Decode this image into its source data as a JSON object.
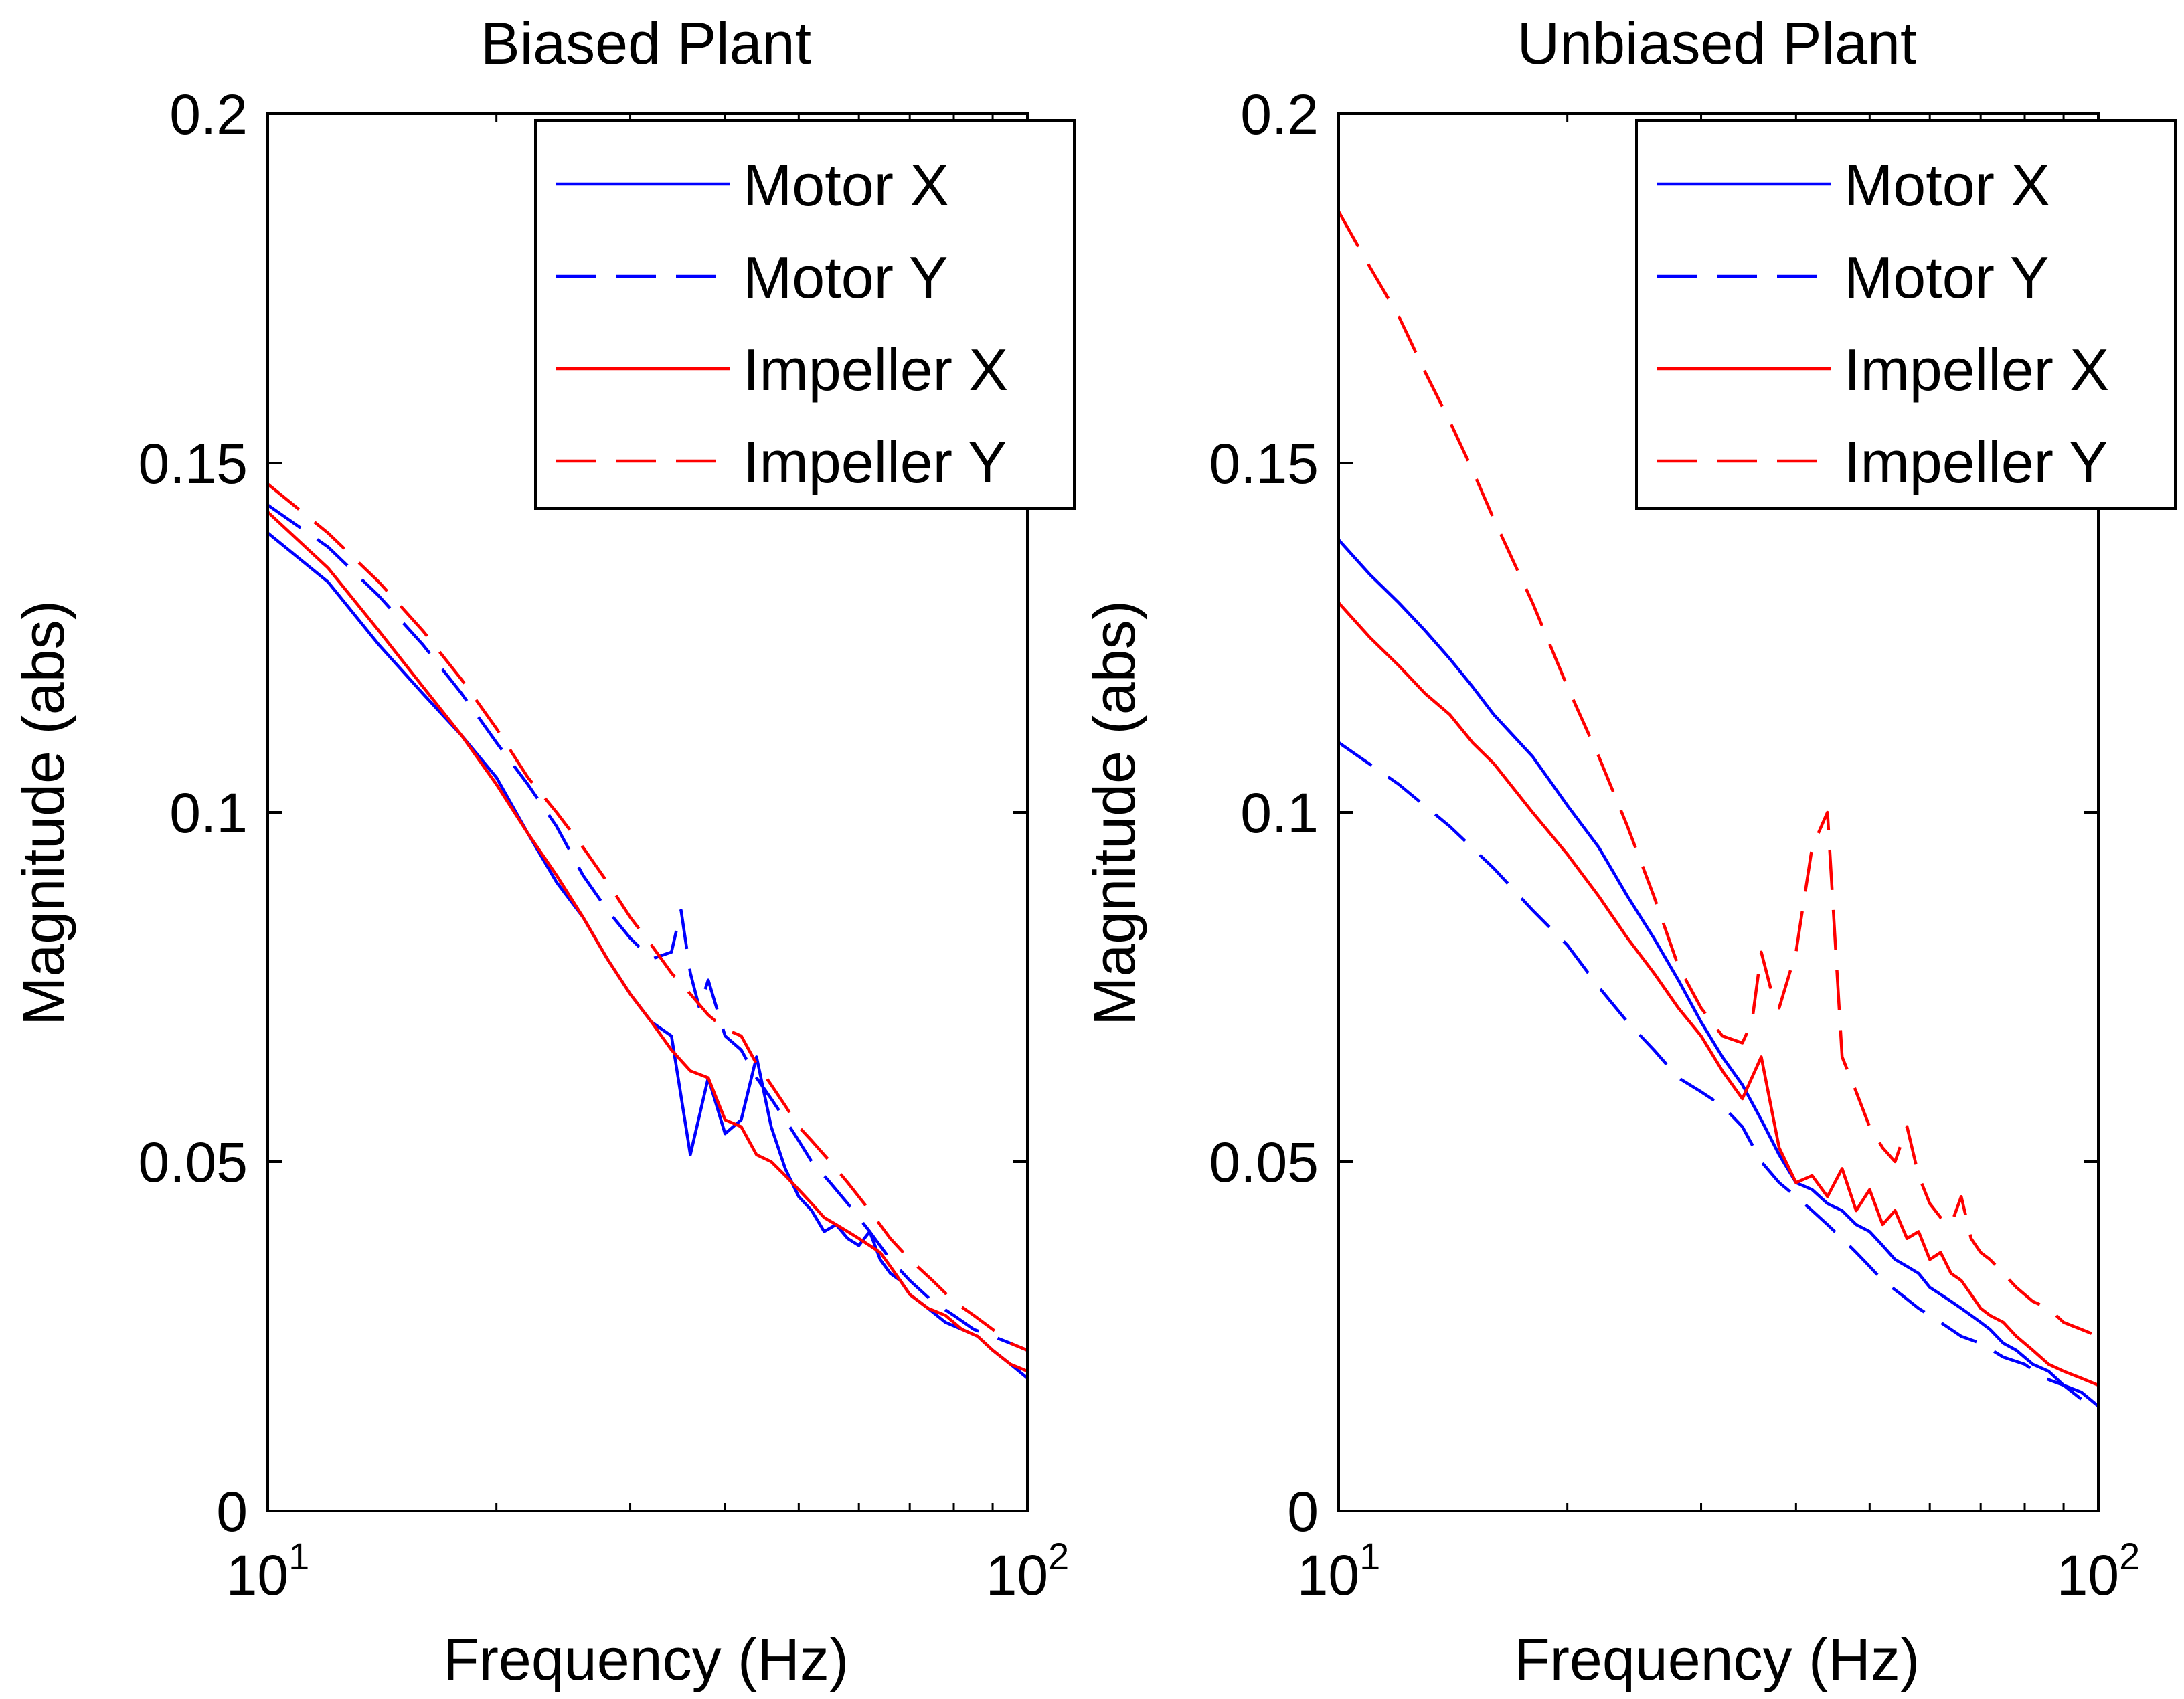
{
  "chart_data": [
    {
      "type": "line",
      "title": "Biased Plant",
      "xlabel": "Frequency  (Hz)",
      "ylabel": "Magnitude (abs)",
      "xscale": "log",
      "xlim": [
        10,
        100
      ],
      "ylim": [
        0,
        0.2
      ],
      "xticks": [
        {
          "base": "10",
          "exp": "1"
        },
        {
          "base": "10",
          "exp": "2"
        }
      ],
      "yticks": [
        "0",
        "0.05",
        "0.1",
        "0.15",
        "0.2"
      ],
      "grid": false,
      "legend_position": "top-right",
      "series": [
        {
          "name": "Motor X",
          "color": "#0000ff",
          "dash": "solid",
          "x": [
            10,
            12,
            14,
            16,
            18,
            20,
            22,
            24,
            26,
            28,
            30,
            32,
            34,
            36,
            38,
            40,
            42,
            44,
            46,
            48,
            50,
            52,
            54,
            56,
            58,
            60,
            62,
            64,
            66,
            68,
            70,
            74,
            78,
            82,
            86,
            90,
            95,
            100
          ],
          "y": [
            0.14,
            0.133,
            0.124,
            0.117,
            0.111,
            0.105,
            0.097,
            0.09,
            0.085,
            0.079,
            0.074,
            0.07,
            0.068,
            0.051,
            0.062,
            0.054,
            0.056,
            0.065,
            0.055,
            0.049,
            0.045,
            0.043,
            0.04,
            0.041,
            0.039,
            0.038,
            0.04,
            0.036,
            0.034,
            0.033,
            0.031,
            0.029,
            0.027,
            0.026,
            0.025,
            0.023,
            0.021,
            0.019
          ]
        },
        {
          "name": "Motor Y",
          "color": "#0000ff",
          "dash": "dashed",
          "x": [
            10,
            12,
            14,
            16,
            18,
            20,
            22,
            24,
            26,
            28,
            30,
            32,
            34,
            35,
            36,
            37,
            38,
            40,
            42,
            44,
            46,
            48,
            50,
            52,
            55,
            58,
            62,
            66,
            70,
            75,
            80,
            85,
            90,
            95,
            100
          ],
          "y": [
            0.144,
            0.138,
            0.131,
            0.124,
            0.117,
            0.11,
            0.104,
            0.098,
            0.091,
            0.086,
            0.082,
            0.079,
            0.08,
            0.086,
            0.077,
            0.072,
            0.076,
            0.068,
            0.066,
            0.062,
            0.059,
            0.056,
            0.053,
            0.05,
            0.047,
            0.044,
            0.04,
            0.036,
            0.033,
            0.03,
            0.028,
            0.026,
            0.025,
            0.024,
            0.023
          ]
        },
        {
          "name": "Impeller X",
          "color": "#ff0000",
          "dash": "solid",
          "x": [
            10,
            12,
            14,
            16,
            18,
            20,
            22,
            24,
            26,
            28,
            30,
            32,
            34,
            36,
            38,
            40,
            42,
            44,
            46,
            48,
            50,
            52,
            54,
            56,
            58,
            60,
            62,
            64,
            66,
            68,
            70,
            74,
            78,
            82,
            86,
            90,
            95,
            100
          ],
          "y": [
            0.143,
            0.135,
            0.126,
            0.118,
            0.111,
            0.104,
            0.097,
            0.091,
            0.085,
            0.079,
            0.074,
            0.07,
            0.066,
            0.063,
            0.062,
            0.056,
            0.055,
            0.051,
            0.05,
            0.048,
            0.046,
            0.044,
            0.042,
            0.041,
            0.04,
            0.039,
            0.038,
            0.037,
            0.035,
            0.033,
            0.031,
            0.029,
            0.028,
            0.026,
            0.025,
            0.023,
            0.021,
            0.02
          ]
        },
        {
          "name": "Impeller Y",
          "color": "#ff0000",
          "dash": "dashed",
          "x": [
            10,
            12,
            14,
            16,
            18,
            20,
            22,
            24,
            26,
            28,
            30,
            32,
            34,
            36,
            38,
            40,
            42,
            44,
            46,
            48,
            50,
            52,
            55,
            58,
            62,
            66,
            70,
            75,
            80,
            85,
            90,
            95,
            100
          ],
          "y": [
            0.147,
            0.14,
            0.133,
            0.126,
            0.119,
            0.112,
            0.105,
            0.1,
            0.095,
            0.09,
            0.085,
            0.081,
            0.077,
            0.074,
            0.071,
            0.069,
            0.068,
            0.064,
            0.061,
            0.058,
            0.055,
            0.053,
            0.05,
            0.047,
            0.043,
            0.039,
            0.036,
            0.033,
            0.03,
            0.028,
            0.026,
            0.024,
            0.023
          ]
        }
      ],
      "legend": [
        "Motor X",
        "Motor Y",
        "Impeller X",
        "Impeller Y"
      ]
    },
    {
      "type": "line",
      "title": "Unbiased Plant",
      "xlabel": "Frequency  (Hz)",
      "ylabel": "Magnitude (abs)",
      "xscale": "log",
      "xlim": [
        10,
        100
      ],
      "ylim": [
        0,
        0.2
      ],
      "xticks": [
        {
          "base": "10",
          "exp": "1"
        },
        {
          "base": "10",
          "exp": "2"
        }
      ],
      "yticks": [
        "0",
        "0.05",
        "0.1",
        "0.15",
        "0.2"
      ],
      "grid": false,
      "legend_position": "top-right",
      "series": [
        {
          "name": "Motor X",
          "color": "#0000ff",
          "dash": "solid",
          "x": [
            10,
            11,
            12,
            13,
            14,
            15,
            16,
            18,
            20,
            22,
            24,
            26,
            28,
            30,
            32,
            34,
            36,
            38,
            40,
            42,
            44,
            46,
            48,
            50,
            52,
            54,
            56,
            58,
            60,
            62,
            64,
            66,
            68,
            70,
            72,
            75,
            78,
            82,
            86,
            90,
            95,
            100
          ],
          "y": [
            0.139,
            0.134,
            0.13,
            0.126,
            0.122,
            0.118,
            0.114,
            0.108,
            0.101,
            0.095,
            0.088,
            0.082,
            0.076,
            0.07,
            0.065,
            0.061,
            0.056,
            0.051,
            0.047,
            0.046,
            0.044,
            0.043,
            0.041,
            0.04,
            0.038,
            0.036,
            0.035,
            0.034,
            0.032,
            0.031,
            0.03,
            0.029,
            0.028,
            0.027,
            0.026,
            0.024,
            0.023,
            0.021,
            0.02,
            0.018,
            0.017,
            0.015
          ]
        },
        {
          "name": "Motor Y",
          "color": "#0000ff",
          "dash": "dashed",
          "x": [
            10,
            12,
            14,
            16,
            18,
            20,
            22,
            24,
            26,
            28,
            30,
            32,
            34,
            36,
            38,
            40,
            42,
            44,
            46,
            48,
            50,
            52,
            55,
            58,
            62,
            66,
            70,
            75,
            80,
            85,
            90,
            95,
            100
          ],
          "y": [
            0.11,
            0.104,
            0.098,
            0.092,
            0.086,
            0.081,
            0.075,
            0.07,
            0.066,
            0.062,
            0.06,
            0.058,
            0.055,
            0.05,
            0.047,
            0.045,
            0.043,
            0.041,
            0.039,
            0.037,
            0.035,
            0.033,
            0.031,
            0.029,
            0.027,
            0.025,
            0.024,
            0.022,
            0.021,
            0.019,
            0.018,
            0.016,
            0.015
          ]
        },
        {
          "name": "Impeller X",
          "color": "#ff0000",
          "dash": "solid",
          "x": [
            10,
            11,
            12,
            13,
            14,
            15,
            16,
            18,
            20,
            22,
            24,
            26,
            28,
            30,
            32,
            34,
            36,
            38,
            40,
            42,
            44,
            46,
            48,
            50,
            52,
            54,
            56,
            58,
            60,
            62,
            64,
            66,
            68,
            70,
            72,
            75,
            78,
            82,
            86,
            90,
            95,
            100
          ],
          "y": [
            0.13,
            0.125,
            0.121,
            0.117,
            0.114,
            0.11,
            0.107,
            0.1,
            0.094,
            0.088,
            0.082,
            0.077,
            0.072,
            0.068,
            0.063,
            0.059,
            0.065,
            0.052,
            0.047,
            0.048,
            0.045,
            0.049,
            0.043,
            0.046,
            0.041,
            0.043,
            0.039,
            0.04,
            0.036,
            0.037,
            0.034,
            0.033,
            0.031,
            0.029,
            0.028,
            0.027,
            0.025,
            0.023,
            0.021,
            0.02,
            0.019,
            0.018
          ]
        },
        {
          "name": "Impeller Y",
          "color": "#ff0000",
          "dash": "dashed",
          "x": [
            10,
            11,
            12,
            13,
            14,
            15,
            16,
            18,
            20,
            22,
            24,
            26,
            28,
            30,
            32,
            34,
            35,
            36,
            37,
            38,
            40,
            42,
            44,
            46,
            48,
            50,
            52,
            54,
            56,
            58,
            60,
            62,
            64,
            66,
            68,
            70,
            72,
            75,
            78,
            82,
            86,
            90,
            95,
            100
          ],
          "y": [
            0.186,
            0.178,
            0.171,
            0.163,
            0.156,
            0.149,
            0.142,
            0.13,
            0.118,
            0.108,
            0.098,
            0.088,
            0.078,
            0.072,
            0.068,
            0.067,
            0.07,
            0.08,
            0.075,
            0.072,
            0.08,
            0.095,
            0.1,
            0.065,
            0.06,
            0.055,
            0.052,
            0.05,
            0.055,
            0.048,
            0.044,
            0.042,
            0.041,
            0.045,
            0.039,
            0.037,
            0.036,
            0.034,
            0.032,
            0.03,
            0.029,
            0.027,
            0.026,
            0.025
          ]
        }
      ],
      "legend": [
        "Motor X",
        "Motor Y",
        "Impeller X",
        "Impeller Y"
      ]
    }
  ]
}
